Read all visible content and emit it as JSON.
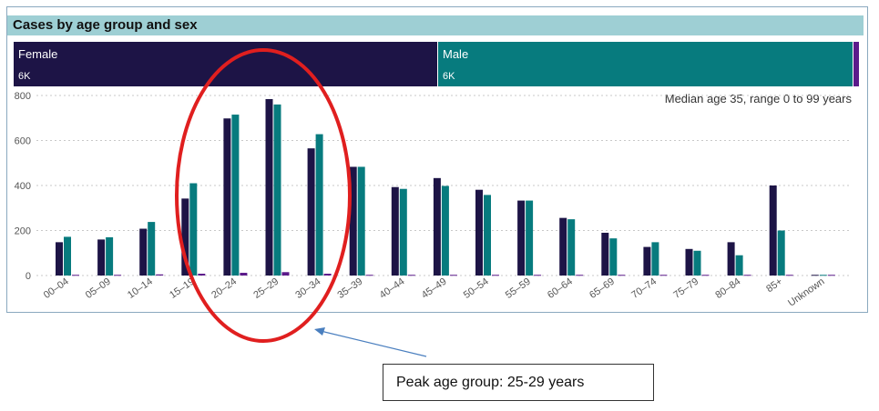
{
  "panel": {
    "title": "Cases by age group and sex",
    "female": {
      "label": "Female",
      "count": "6K"
    },
    "male": {
      "label": "Male",
      "count": "6K"
    }
  },
  "note": "Median age 35, range 0 to 99 years",
  "callout": "Peak age group: 25-29 years",
  "colors": {
    "female": "#1d1446",
    "male": "#077b7e",
    "other": "#5b1a8a",
    "highlight": "#e01f1f",
    "arrow": "#4a7fbf"
  },
  "chart_data": {
    "type": "bar",
    "title": "Cases by age group and sex",
    "categories": [
      "00–04",
      "05–09",
      "10–14",
      "15–19",
      "20–24",
      "25–29",
      "30–34",
      "35–39",
      "40–44",
      "45–49",
      "50–54",
      "55–59",
      "60–64",
      "65–69",
      "70–74",
      "75–79",
      "80–84",
      "85+",
      "Unknown"
    ],
    "series": [
      {
        "name": "Female",
        "color": "#1d1446",
        "values": [
          148,
          160,
          208,
          342,
          698,
          784,
          565,
          483,
          393,
          433,
          381,
          333,
          256,
          190,
          127,
          118,
          148,
          400,
          3
        ]
      },
      {
        "name": "Male",
        "color": "#077b7e",
        "values": [
          172,
          170,
          238,
          410,
          715,
          760,
          628,
          483,
          385,
          398,
          358,
          333,
          250,
          165,
          148,
          110,
          90,
          200,
          3
        ]
      },
      {
        "values": [
          3,
          3,
          5,
          8,
          12,
          15,
          8,
          3,
          3,
          3,
          3,
          3,
          3,
          3,
          3,
          3,
          3,
          3,
          3
        ]
      }
    ],
    "yticks": [
      "0",
      "200",
      "400",
      "600",
      "800"
    ],
    "ylim": [
      0,
      800
    ],
    "grid": true,
    "xlabel": "",
    "ylabel": ""
  }
}
